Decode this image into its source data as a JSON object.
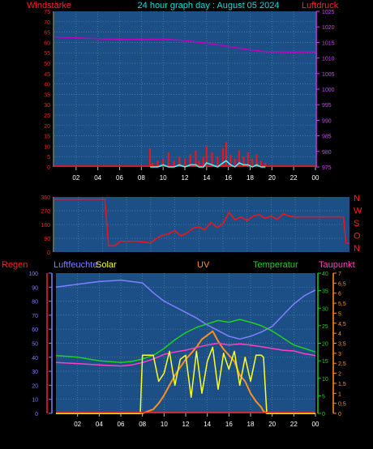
{
  "panel_top": {
    "title": "24 hour graph day : August 05 2024",
    "left_label": "Windstärke",
    "right_label": "Luftdruck",
    "left_ticks": [
      75,
      70,
      65,
      60,
      55,
      50,
      45,
      40,
      35,
      30,
      25,
      20,
      15,
      10,
      5,
      0
    ],
    "right_ticks": [
      1025,
      1020,
      1015,
      1010,
      1005,
      1000,
      995,
      990,
      985,
      980,
      975
    ]
  },
  "panel_mid": {
    "left_ticks": [
      360,
      270,
      180,
      90,
      0
    ],
    "right_labels": [
      "N",
      "W",
      "S",
      "O",
      "N"
    ]
  },
  "panel_bot": {
    "headers": {
      "regen": "Regen",
      "luftfeuchte": "Luftfeuchte",
      "solar": "Solar",
      "uv": "UV",
      "temperatur": "Temperatur",
      "taupunkt": "Taupunkt"
    },
    "humidity_ticks": [
      100,
      90,
      80,
      70,
      60,
      50,
      40,
      30,
      20,
      10,
      0
    ],
    "temp_ticks": [
      40,
      35,
      30,
      25,
      20,
      15,
      10,
      5,
      0
    ],
    "uv_ticks": [
      "7",
      "6,5",
      "6",
      "5,5",
      "5",
      "4,5",
      "4",
      "3,5",
      "3",
      "2,5",
      "2",
      "1,5",
      "1",
      "0,5",
      "0"
    ]
  },
  "x_ticks": [
    "02",
    "04",
    "06",
    "08",
    "10",
    "12",
    "14",
    "16",
    "18",
    "20",
    "22",
    "00"
  ],
  "colors": {
    "plot_bg": "#1c4f86",
    "grid": "#5c7fa8",
    "title": "#00e0e0",
    "red_label": "#ff2020",
    "pressure": "#c000c0",
    "pressure_axis": "#d040ff",
    "wind": "#ff1010",
    "gust": "#40ffff",
    "humidity": "#8080ff",
    "temp": "#20d020",
    "dew": "#ff40c0",
    "solar": "#ffff20",
    "uv": "#ff9020",
    "rain": "#ff2020"
  },
  "chart_data": [
    {
      "type": "line",
      "x_hours": [
        0,
        2,
        4,
        6,
        8,
        10,
        12,
        14,
        16,
        18,
        19.5,
        20,
        22,
        24
      ],
      "series": [
        {
          "values": [
            1016.8,
            1016.5,
            1016.2,
            1016.0,
            1016.0,
            1016.1,
            1015.6,
            1014.8,
            1013.7,
            1012.6,
            1012.0,
            1012.0,
            1011.9,
            1012.0
          ]
        }
      ],
      "ylim": [
        975,
        1025
      ]
    },
    {
      "type": "bar",
      "x_hours": [
        8.8,
        9.0,
        9.5,
        10,
        10.5,
        11,
        11.5,
        12,
        12.5,
        13,
        13.3,
        13.7,
        14,
        14.5,
        15,
        15.5,
        15.8,
        16.2,
        16.6,
        17,
        17.4,
        17.8,
        18.2,
        18.6,
        19,
        19.4
      ],
      "series": [
        {
          "values": [
            9,
            2,
            3,
            4,
            7,
            3,
            5,
            4,
            6,
            8,
            3,
            5,
            10,
            7,
            5,
            9,
            12,
            6,
            4,
            8,
            5,
            7,
            4,
            6,
            3,
            2
          ]
        },
        {
          "values": [
            0,
            0,
            0,
            1,
            0,
            0,
            1,
            0,
            1,
            1,
            0,
            0,
            2,
            1,
            0,
            2,
            3,
            1,
            0,
            2,
            1,
            1,
            0,
            1,
            0,
            0
          ]
        }
      ],
      "ylim": [
        0,
        75
      ]
    },
    {
      "type": "line",
      "x_hours": [
        0,
        1,
        2,
        3,
        4,
        4.2,
        4.5,
        5,
        5.5,
        6,
        7,
        8,
        8.5,
        9,
        9.5,
        10,
        10.5,
        11,
        11.5,
        12,
        12.5,
        13,
        13.5,
        14,
        14.5,
        15,
        15.5,
        16,
        16.5,
        17,
        17.5,
        18,
        18.5,
        19,
        19.5,
        20,
        21,
        22,
        23,
        24,
        24.2,
        24.5
      ],
      "series": [
        {
          "values": [
            345,
            345,
            345,
            345,
            345,
            345,
            40,
            40,
            70,
            70,
            70,
            60,
            90,
            110,
            120,
            140,
            105,
            125,
            155,
            165,
            145,
            195,
            160,
            185,
            260,
            210,
            230,
            205,
            235,
            245,
            220,
            235,
            215,
            250,
            235,
            230,
            230,
            230,
            230,
            230,
            60,
            60
          ]
        }
      ],
      "ylim": [
        0,
        360
      ]
    },
    {
      "type": "line",
      "x_hours": [
        0,
        2,
        4,
        6,
        7,
        8,
        9,
        10,
        11,
        12,
        13,
        14,
        15,
        16,
        17,
        18,
        19,
        20,
        21,
        22,
        23,
        24
      ],
      "series": [
        {
          "values": [
            90,
            92,
            94,
            95,
            94,
            93,
            86,
            80,
            76,
            72,
            68,
            63,
            59,
            55,
            53,
            55,
            58,
            62,
            70,
            78,
            84,
            88
          ]
        },
        {
          "values": [
            16.5,
            16.0,
            15.0,
            14.5,
            14.8,
            15.5,
            16.5,
            18.5,
            21.0,
            23.0,
            24.5,
            25.5,
            26.5,
            26.0,
            26.8,
            26.0,
            25.0,
            23.5,
            21.5,
            19.5,
            18.5,
            17.5
          ]
        },
        {
          "values": [
            14.5,
            14.2,
            13.8,
            13.5,
            13.8,
            14.5,
            15.5,
            16.8,
            17.5,
            18.0,
            18.8,
            19.5,
            20.0,
            19.5,
            19.8,
            19.5,
            19.0,
            18.5,
            18.0,
            17.8,
            17.0,
            16.5
          ]
        }
      ]
    },
    {
      "type": "line",
      "x_hours": [
        0,
        7.6,
        7.8,
        8,
        9,
        9.5,
        10,
        10.5,
        11,
        11.5,
        12,
        12.5,
        13,
        13.5,
        14,
        14.5,
        15,
        15.5,
        16,
        16.5,
        17,
        17.5,
        18,
        18.5,
        19,
        19.2,
        19.5,
        24
      ],
      "series": [
        {
          "values": [
            0,
            0,
            0,
            2.9,
            2.9,
            1.6,
            2.0,
            3.1,
            1.4,
            2.7,
            2.9,
            0.8,
            3.1,
            1.0,
            2.6,
            3.3,
            1.2,
            3.0,
            2.2,
            3.1,
            1.4,
            2.8,
            1.6,
            2.9,
            2.9,
            2.8,
            0,
            0
          ]
        },
        {
          "values": [
            0,
            0,
            0,
            0,
            0.2,
            0.5,
            0.9,
            1.4,
            1.9,
            2.3,
            2.7,
            3.0,
            3.3,
            3.7,
            3.9,
            4.1,
            3.6,
            3.2,
            2.9,
            2.6,
            1.9,
            1.6,
            1.0,
            0.6,
            0.3,
            0.1,
            0,
            0
          ]
        }
      ],
      "ylim": [
        0,
        7
      ]
    }
  ]
}
